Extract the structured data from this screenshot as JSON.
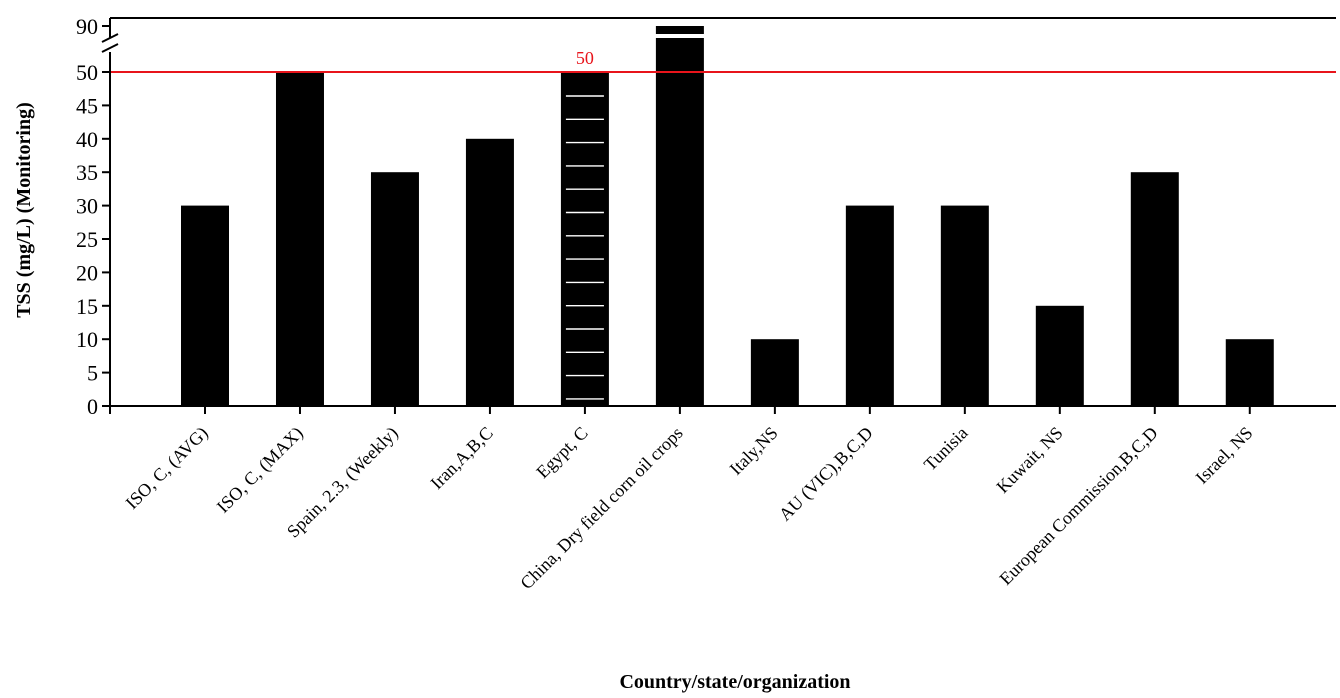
{
  "chart_data": {
    "type": "bar",
    "title": "",
    "xlabel": "Country/state/organization",
    "ylabel": "TSS (mg/L) (Monitoring)",
    "ylim": [
      0,
      90
    ],
    "axis_break": {
      "from": 50,
      "to": 90
    },
    "yticks": [
      0,
      5,
      10,
      15,
      20,
      25,
      30,
      35,
      40,
      45,
      50,
      90
    ],
    "categories": [
      "ISO, C, (AVG)",
      "ISO, C, (MAX)",
      "Spain, 2.3, (Weekly)",
      "Iran,A,B,C",
      "Egypt, C",
      "China, Dry field corn oil crops",
      "Italy,NS",
      "AU (VIC),B,C,D",
      "Tunisia",
      "Kuwait, NS",
      "European Commission,B,C,D",
      "Israel, NS"
    ],
    "values": [
      30,
      50,
      35,
      40,
      50,
      90,
      10,
      30,
      30,
      15,
      35,
      10
    ],
    "highlight_category": "Egypt, C",
    "highlight_color": "#e8141b",
    "bar_color": "#000000",
    "reference_line": {
      "value": 50,
      "label": "50",
      "color": "#e8141b"
    },
    "grid": false,
    "legend": "none"
  }
}
